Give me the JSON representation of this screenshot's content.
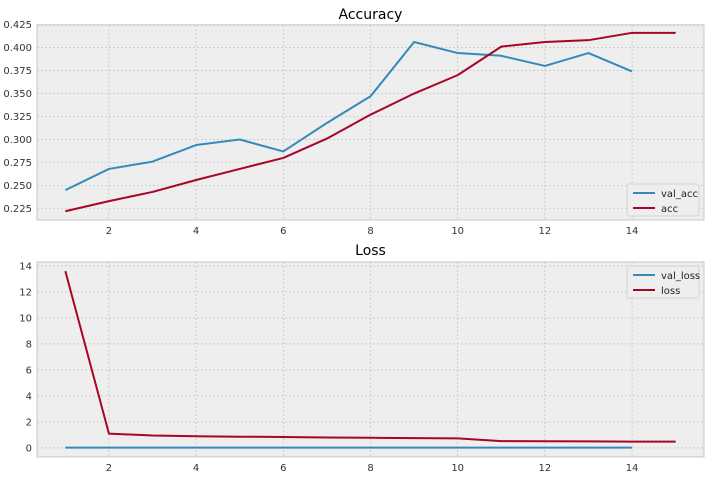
{
  "colors": {
    "plot_background": "#EEEEEE",
    "grid": "#BBBBBB",
    "frame": "#BCBCBC",
    "series_blue": "#348ABD",
    "series_red": "#A60628"
  },
  "chart_data": [
    {
      "type": "line",
      "title": "Accuracy",
      "xlabel": "",
      "ylabel": "",
      "xlim": [
        0.35,
        15.65
      ],
      "ylim": [
        0.2125,
        0.4245
      ],
      "x_ticks": [
        2,
        4,
        6,
        8,
        10,
        12,
        14
      ],
      "x_tick_labels": [
        "2",
        "4",
        "6",
        "8",
        "10",
        "12",
        "14"
      ],
      "y_ticks": [
        0.225,
        0.25,
        0.275,
        0.3,
        0.325,
        0.35,
        0.375,
        0.4,
        0.425
      ],
      "y_tick_labels": [
        "0.225",
        "0.250",
        "0.275",
        "0.300",
        "0.325",
        "0.350",
        "0.375",
        "0.400",
        "0.425"
      ],
      "grid": true,
      "legend_position": "lower-right",
      "series": [
        {
          "name": "val_acc",
          "color": "#348ABD",
          "x": [
            1,
            2,
            3,
            4,
            5,
            6,
            7,
            8,
            9,
            10,
            11,
            12,
            13,
            14
          ],
          "values": [
            0.245,
            0.268,
            0.276,
            0.294,
            0.3,
            0.287,
            0.318,
            0.347,
            0.406,
            0.394,
            0.391,
            0.38,
            0.394,
            0.374
          ]
        },
        {
          "name": "acc",
          "color": "#A60628",
          "x": [
            1,
            2,
            3,
            4,
            5,
            6,
            7,
            8,
            9,
            10,
            11,
            12,
            13,
            14,
            15
          ],
          "values": [
            0.222,
            0.233,
            0.243,
            0.256,
            0.268,
            0.28,
            0.301,
            0.327,
            0.35,
            0.37,
            0.401,
            0.406,
            0.408,
            0.416,
            0.416
          ]
        }
      ]
    },
    {
      "type": "line",
      "title": "Loss",
      "xlabel": "",
      "ylabel": "",
      "xlim": [
        0.35,
        15.65
      ],
      "ylim": [
        -0.7,
        14.3
      ],
      "x_ticks": [
        2,
        4,
        6,
        8,
        10,
        12,
        14
      ],
      "x_tick_labels": [
        "2",
        "4",
        "6",
        "8",
        "10",
        "12",
        "14"
      ],
      "y_ticks": [
        0,
        2,
        4,
        6,
        8,
        10,
        12,
        14
      ],
      "y_tick_labels": [
        "0",
        "2",
        "4",
        "6",
        "8",
        "10",
        "12",
        "14"
      ],
      "grid": true,
      "legend_position": "upper-right",
      "series": [
        {
          "name": "val_loss",
          "color": "#348ABD",
          "x": [
            1,
            2,
            3,
            4,
            5,
            6,
            7,
            8,
            9,
            10,
            11,
            12,
            13,
            14
          ],
          "values": [
            0.02,
            0.02,
            0.02,
            0.02,
            0.02,
            0.02,
            0.02,
            0.02,
            0.02,
            0.02,
            0.02,
            0.02,
            0.02,
            0.02
          ]
        },
        {
          "name": "loss",
          "color": "#A60628",
          "x": [
            1,
            2,
            3,
            4,
            5,
            6,
            7,
            8,
            9,
            10,
            11,
            12,
            13,
            14,
            15
          ],
          "values": [
            13.6,
            1.1,
            0.95,
            0.9,
            0.86,
            0.84,
            0.8,
            0.78,
            0.75,
            0.73,
            0.52,
            0.51,
            0.5,
            0.48,
            0.48
          ]
        }
      ]
    }
  ]
}
